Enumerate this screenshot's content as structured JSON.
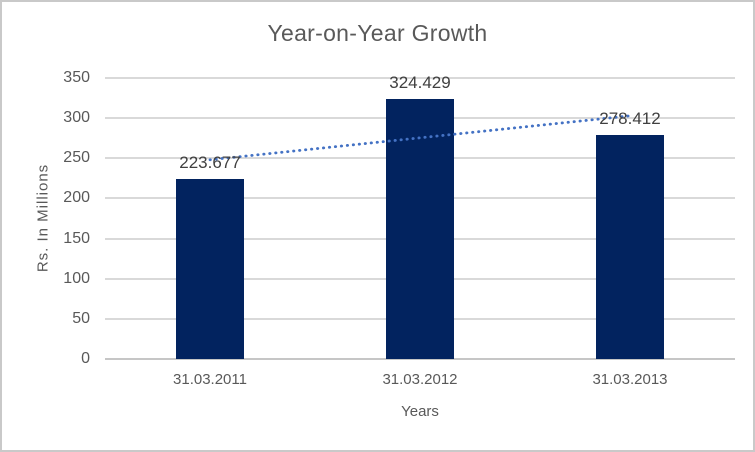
{
  "window": {
    "background": "#FFFFFF",
    "border_color": "#C9C9C9"
  },
  "chart_data": {
    "type": "bar",
    "title": "Year-on-Year Growth",
    "categories": [
      "31.03.2011",
      "31.03.2012",
      "31.03.2013"
    ],
    "values": [
      223.677,
      324.429,
      278.412
    ],
    "data_labels": [
      "223.677",
      "324.429",
      "278.412"
    ],
    "xlabel": "Years",
    "ylabel": "Rs. In Millions",
    "ylim": [
      0,
      350
    ],
    "ytick_step": 50,
    "ytick_labels": [
      "0",
      "50",
      "100",
      "150",
      "200",
      "250",
      "300",
      "350"
    ],
    "grid": "horizontal",
    "legend": "none",
    "bar_color": "#02235F",
    "data_label_color": "#404040",
    "axis_text_color": "#595959",
    "gridline_color": "#D9D9D9",
    "baseline_color": "#C6C6C6",
    "trendline": {
      "type": "linear",
      "style": "dotted",
      "color": "#4472C4",
      "fit_values": [
        248.14,
        275.51,
        302.87
      ]
    }
  }
}
